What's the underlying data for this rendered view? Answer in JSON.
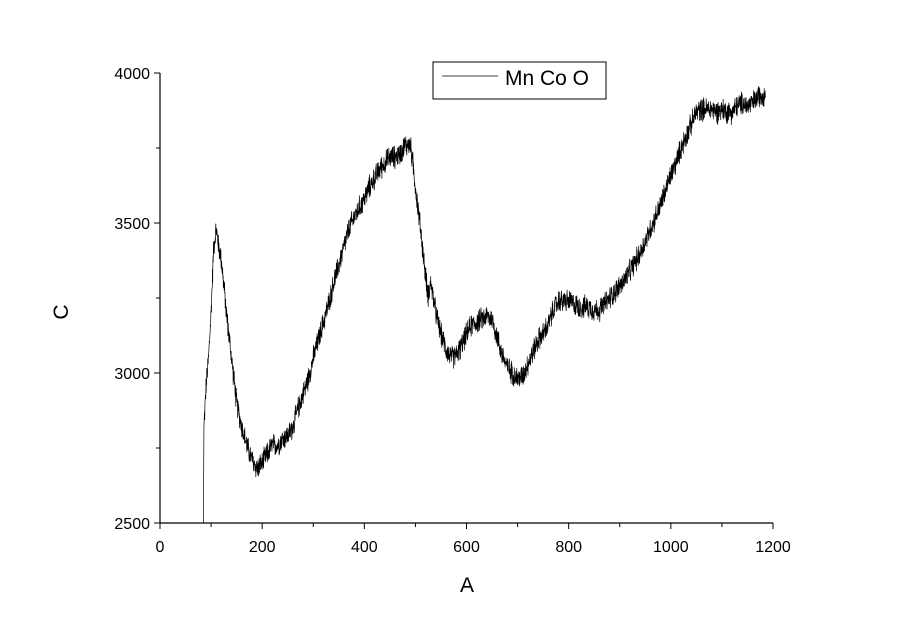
{
  "chart_data": {
    "type": "line",
    "xlabel": "A",
    "ylabel": "C",
    "xlim": [
      0,
      1200
    ],
    "ylim": [
      2500,
      4000
    ],
    "x_ticks": [
      0,
      200,
      400,
      600,
      800,
      1000,
      1200
    ],
    "y_ticks": [
      2500,
      3000,
      3500,
      4000
    ],
    "grid": false,
    "legend_position": "top-right",
    "series": [
      {
        "name": "Mn Co O",
        "color": "#000000",
        "noise": 45,
        "points": [
          [
            85,
            2500
          ],
          [
            86,
            2820
          ],
          [
            90,
            2950
          ],
          [
            95,
            3050
          ],
          [
            100,
            3200
          ],
          [
            105,
            3420
          ],
          [
            110,
            3480
          ],
          [
            115,
            3420
          ],
          [
            120,
            3380
          ],
          [
            130,
            3200
          ],
          [
            140,
            3050
          ],
          [
            150,
            2900
          ],
          [
            160,
            2820
          ],
          [
            170,
            2760
          ],
          [
            180,
            2710
          ],
          [
            190,
            2680
          ],
          [
            200,
            2700
          ],
          [
            210,
            2730
          ],
          [
            220,
            2760
          ],
          [
            230,
            2760
          ],
          [
            240,
            2780
          ],
          [
            250,
            2790
          ],
          [
            260,
            2820
          ],
          [
            270,
            2880
          ],
          [
            280,
            2930
          ],
          [
            290,
            2980
          ],
          [
            300,
            3050
          ],
          [
            310,
            3110
          ],
          [
            320,
            3170
          ],
          [
            330,
            3230
          ],
          [
            340,
            3300
          ],
          [
            350,
            3360
          ],
          [
            360,
            3420
          ],
          [
            370,
            3480
          ],
          [
            380,
            3520
          ],
          [
            390,
            3550
          ],
          [
            400,
            3580
          ],
          [
            410,
            3620
          ],
          [
            420,
            3650
          ],
          [
            430,
            3680
          ],
          [
            440,
            3700
          ],
          [
            450,
            3720
          ],
          [
            460,
            3720
          ],
          [
            470,
            3730
          ],
          [
            480,
            3760
          ],
          [
            490,
            3760
          ],
          [
            495,
            3700
          ],
          [
            500,
            3620
          ],
          [
            505,
            3550
          ],
          [
            510,
            3480
          ],
          [
            515,
            3400
          ],
          [
            520,
            3320
          ],
          [
            525,
            3260
          ],
          [
            530,
            3300
          ],
          [
            540,
            3200
          ],
          [
            550,
            3130
          ],
          [
            560,
            3080
          ],
          [
            570,
            3050
          ],
          [
            580,
            3060
          ],
          [
            590,
            3090
          ],
          [
            600,
            3130
          ],
          [
            610,
            3160
          ],
          [
            620,
            3170
          ],
          [
            630,
            3180
          ],
          [
            640,
            3190
          ],
          [
            650,
            3180
          ],
          [
            660,
            3120
          ],
          [
            670,
            3060
          ],
          [
            680,
            3020
          ],
          [
            690,
            3000
          ],
          [
            700,
            2980
          ],
          [
            710,
            2990
          ],
          [
            720,
            3030
          ],
          [
            730,
            3070
          ],
          [
            740,
            3110
          ],
          [
            750,
            3130
          ],
          [
            760,
            3160
          ],
          [
            770,
            3210
          ],
          [
            780,
            3240
          ],
          [
            790,
            3240
          ],
          [
            800,
            3240
          ],
          [
            810,
            3230
          ],
          [
            820,
            3220
          ],
          [
            830,
            3220
          ],
          [
            840,
            3220
          ],
          [
            850,
            3210
          ],
          [
            860,
            3210
          ],
          [
            870,
            3230
          ],
          [
            880,
            3250
          ],
          [
            890,
            3270
          ],
          [
            900,
            3290
          ],
          [
            910,
            3310
          ],
          [
            920,
            3340
          ],
          [
            930,
            3370
          ],
          [
            940,
            3400
          ],
          [
            950,
            3440
          ],
          [
            960,
            3480
          ],
          [
            970,
            3520
          ],
          [
            980,
            3560
          ],
          [
            990,
            3610
          ],
          [
            1000,
            3660
          ],
          [
            1010,
            3700
          ],
          [
            1020,
            3750
          ],
          [
            1030,
            3790
          ],
          [
            1040,
            3830
          ],
          [
            1050,
            3870
          ],
          [
            1060,
            3880
          ],
          [
            1070,
            3880
          ],
          [
            1080,
            3880
          ],
          [
            1090,
            3870
          ],
          [
            1100,
            3880
          ],
          [
            1110,
            3870
          ],
          [
            1120,
            3870
          ],
          [
            1130,
            3890
          ],
          [
            1140,
            3900
          ],
          [
            1150,
            3890
          ],
          [
            1160,
            3900
          ],
          [
            1170,
            3920
          ],
          [
            1180,
            3930
          ],
          [
            1185,
            3930
          ]
        ]
      }
    ]
  }
}
